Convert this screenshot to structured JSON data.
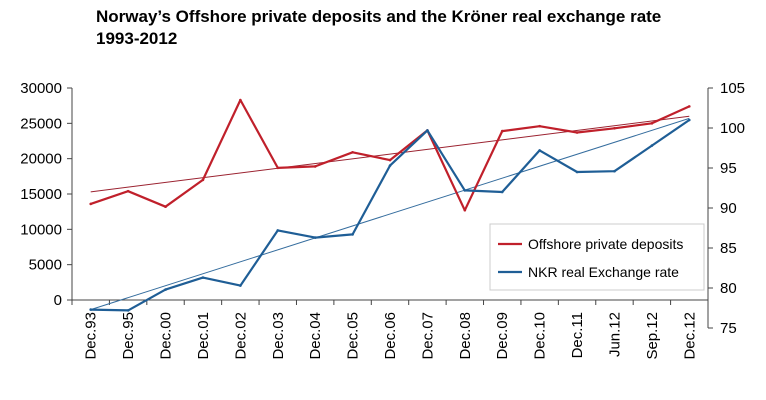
{
  "title_line1": "Norway’s Offshore private deposits and the Kröner real exchange rate",
  "title_line2": "1993-2012",
  "chart_data": {
    "type": "line",
    "categories": [
      "Dec.93",
      "Dec.95",
      "Dec.00",
      "Dec.01",
      "Dec.02",
      "Dec.03",
      "Dec.04",
      "Dec.05",
      "Dec.06",
      "Dec.07",
      "Dec.08",
      "Dec.09",
      "Dec.10",
      "Dec.11",
      "Jun.12",
      "Sep.12",
      "Dec.12"
    ],
    "series": [
      {
        "name": "Offshore private deposits",
        "axis": "left",
        "color": "#c0202b",
        "values": [
          13600,
          15400,
          13200,
          17000,
          28300,
          18700,
          18900,
          20900,
          19800,
          24000,
          12700,
          23900,
          24600,
          23700,
          24300,
          25000,
          27400
        ]
      },
      {
        "name": "NKR real Exchange rate",
        "axis": "right",
        "color": "#1f5e96",
        "values": [
          77.3,
          77.2,
          79.8,
          81.3,
          80.3,
          87.2,
          86.3,
          86.7,
          95.3,
          99.7,
          92.2,
          92.0,
          97.2,
          94.5,
          94.6,
          97.8,
          101.0
        ]
      }
    ],
    "trendlines": [
      {
        "series": "Offshore private deposits",
        "color": "#9b2230",
        "start": 15300,
        "end": 26000
      },
      {
        "series": "NKR real Exchange rate",
        "color": "#356d9e",
        "start": 77.3,
        "end": 101.2
      }
    ],
    "y_left": {
      "min": 0,
      "max": 30000,
      "ticks": [
        "0",
        "5000",
        "10000",
        "15000",
        "20000",
        "25000",
        "30000"
      ]
    },
    "y_right": {
      "min": 75,
      "max": 105,
      "ticks": [
        "75",
        "80",
        "85",
        "90",
        "95",
        "100",
        "105"
      ]
    },
    "grid": false,
    "legend_position": "bottom-right"
  }
}
